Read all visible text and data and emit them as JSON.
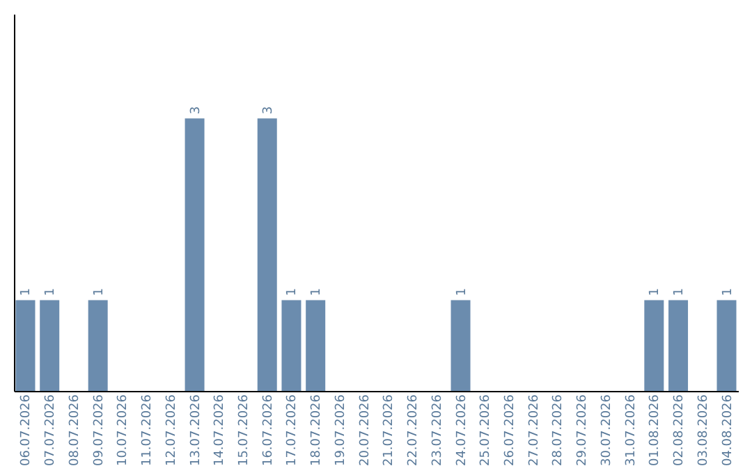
{
  "chart_data": {
    "type": "bar",
    "categories": [
      "06.07.2026",
      "07.07.2026",
      "08.07.2026",
      "09.07.2026",
      "10.07.2026",
      "11.07.2026",
      "12.07.2026",
      "13.07.2026",
      "14.07.2026",
      "15.07.2026",
      "16.07.2026",
      "17.07.2026",
      "18.07.2026",
      "19.07.2026",
      "20.07.2026",
      "21.07.2026",
      "22.07.2026",
      "23.07.2026",
      "24.07.2026",
      "25.07.2026",
      "26.07.2026",
      "27.07.2026",
      "28.07.2026",
      "29.07.2026",
      "30.07.2026",
      "31.07.2026",
      "01.08.2026",
      "02.08.2026",
      "03.08.2026",
      "04.08.2026"
    ],
    "values": [
      1,
      1,
      0,
      1,
      0,
      0,
      0,
      3,
      0,
      0,
      3,
      1,
      1,
      0,
      0,
      0,
      0,
      0,
      1,
      0,
      0,
      0,
      0,
      0,
      0,
      0,
      1,
      1,
      0,
      1
    ],
    "value_labels": [
      "1",
      "1",
      null,
      "1",
      null,
      null,
      null,
      "3",
      null,
      null,
      "3",
      "1",
      "1",
      null,
      null,
      null,
      null,
      null,
      "1",
      null,
      null,
      null,
      null,
      null,
      null,
      null,
      "1",
      "1",
      null,
      "1"
    ],
    "color": "#6b8cae",
    "ylim": [
      0,
      4.15
    ],
    "tick_labels": "x",
    "grid": false
  }
}
